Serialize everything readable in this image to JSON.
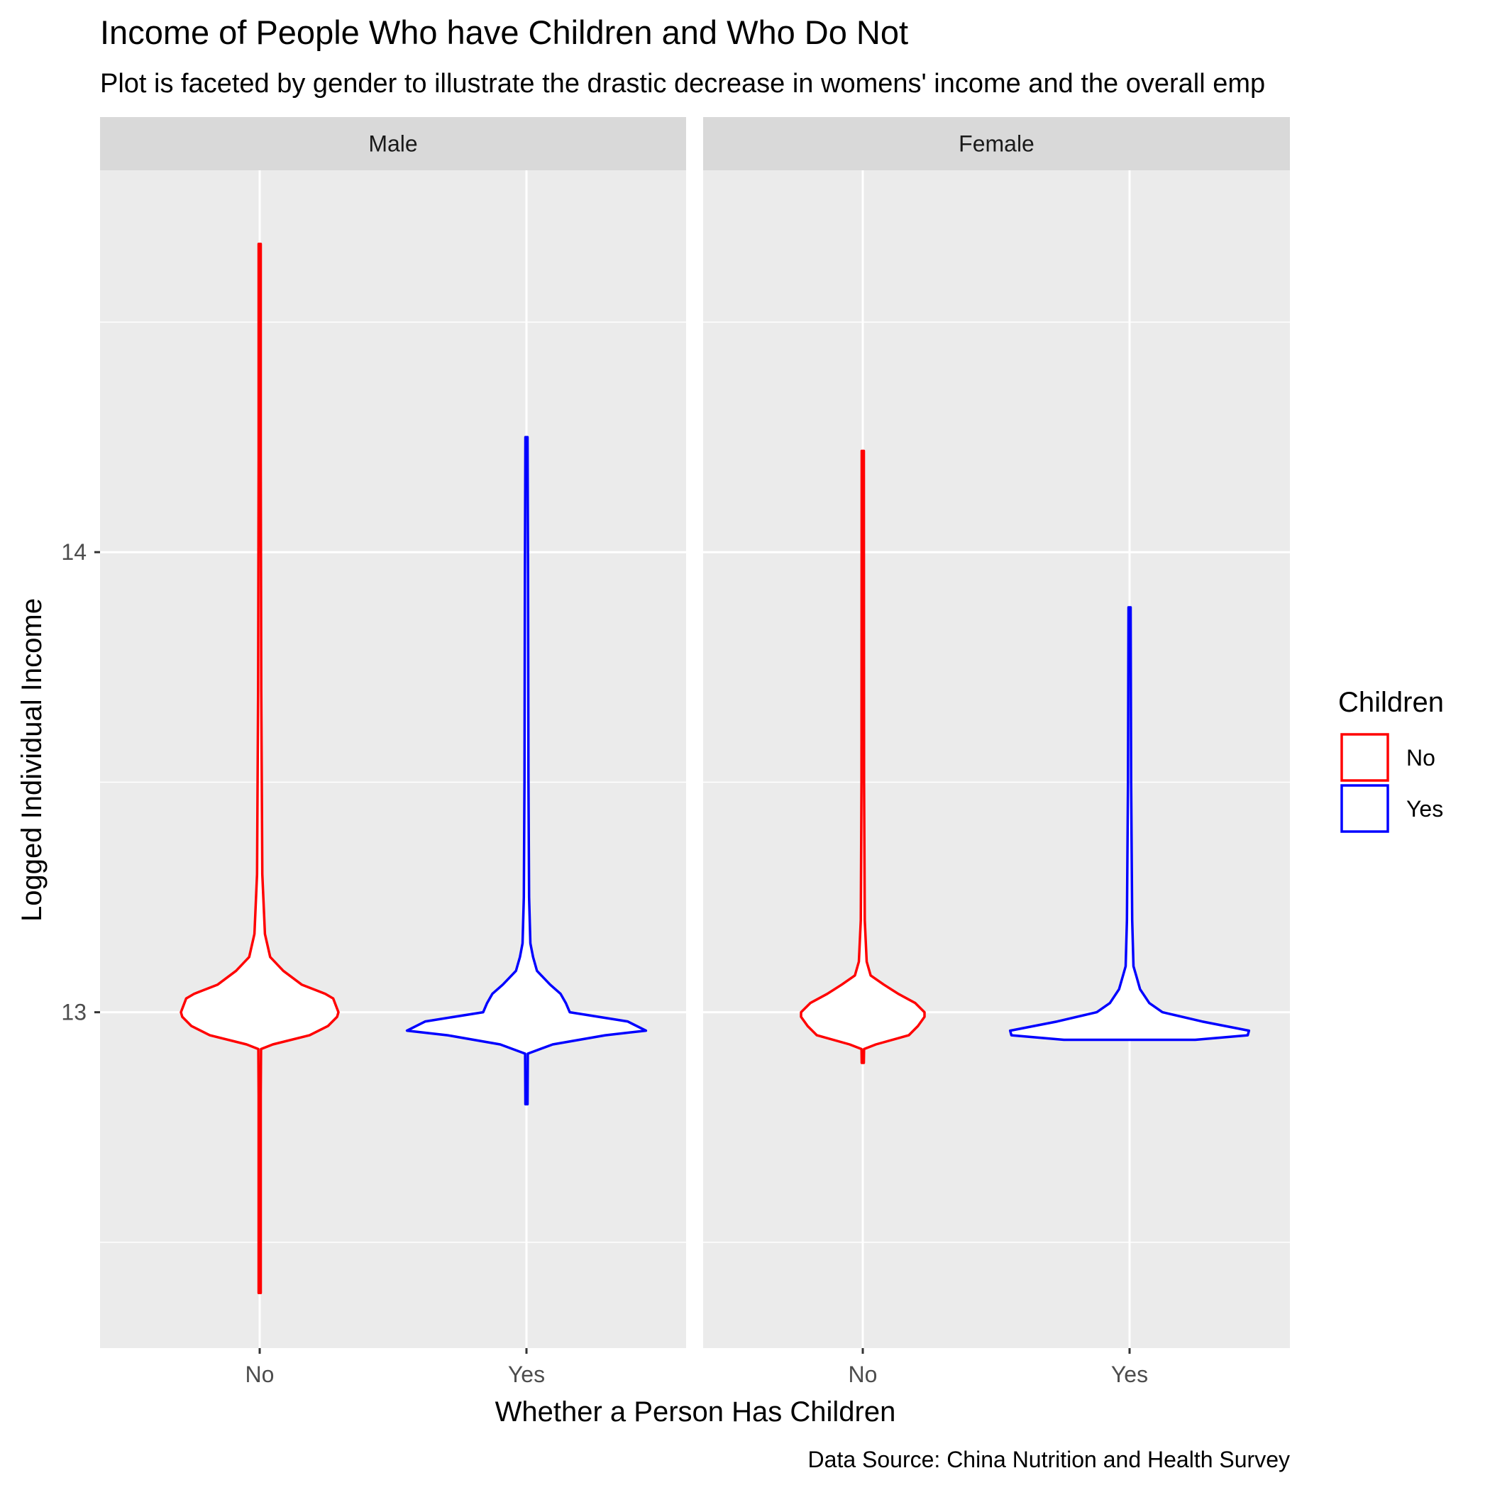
{
  "chart_data": {
    "type": "violin",
    "title": "Income of People Who have Children and Who Do Not",
    "subtitle": "Plot is faceted by gender to illustrate the drastic decrease in womens' income and the overall emp",
    "xlabel": "Whether a Person Has Children",
    "ylabel": "Logged Individual Income",
    "caption": "Data Source: China Nutrition and Health Survey",
    "categories": [
      "No",
      "Yes"
    ],
    "y_ticks": [
      13,
      14
    ],
    "y_tick_labels": [
      "13",
      "14"
    ],
    "ylim": [
      12.27,
      14.83
    ],
    "grid": true,
    "legend": {
      "title": "Children",
      "position": "right",
      "entries": [
        {
          "label": "No",
          "color": "#ff0000"
        },
        {
          "label": "Yes",
          "color": "#0000ff"
        }
      ]
    },
    "facets": [
      {
        "name": "Male",
        "series": [
          {
            "category": "No",
            "color": "#ff0000",
            "min": 12.39,
            "max": 14.67,
            "profile": [
              [
                12.39,
                0.008
              ],
              [
                12.6,
                0.008
              ],
              [
                12.82,
                0.008
              ],
              [
                12.92,
                0.01
              ],
              [
                12.93,
                0.1
              ],
              [
                12.95,
                0.38
              ],
              [
                12.97,
                0.52
              ],
              [
                12.99,
                0.59
              ],
              [
                13.0,
                0.6
              ],
              [
                13.03,
                0.56
              ],
              [
                13.04,
                0.5
              ],
              [
                13.06,
                0.32
              ],
              [
                13.09,
                0.18
              ],
              [
                13.12,
                0.08
              ],
              [
                13.17,
                0.04
              ],
              [
                13.3,
                0.02
              ],
              [
                13.7,
                0.012
              ],
              [
                14.2,
                0.008
              ],
              [
                14.67,
                0.008
              ]
            ]
          },
          {
            "category": "Yes",
            "color": "#0000ff",
            "min": 12.8,
            "max": 14.25,
            "profile": [
              [
                12.8,
                0.008
              ],
              [
                12.91,
                0.01
              ],
              [
                12.93,
                0.2
              ],
              [
                12.95,
                0.6
              ],
              [
                12.96,
                0.91
              ],
              [
                12.98,
                0.77
              ],
              [
                13.0,
                0.33
              ],
              [
                13.02,
                0.3
              ],
              [
                13.04,
                0.26
              ],
              [
                13.06,
                0.18
              ],
              [
                13.09,
                0.08
              ],
              [
                13.12,
                0.05
              ],
              [
                13.15,
                0.03
              ],
              [
                13.25,
                0.02
              ],
              [
                13.5,
                0.015
              ],
              [
                13.95,
                0.012
              ],
              [
                14.25,
                0.008
              ]
            ]
          }
        ]
      },
      {
        "name": "Female",
        "series": [
          {
            "category": "No",
            "color": "#ff0000",
            "min": 12.89,
            "max": 14.22,
            "profile": [
              [
                12.89,
                0.008
              ],
              [
                12.92,
                0.01
              ],
              [
                12.93,
                0.1
              ],
              [
                12.95,
                0.35
              ],
              [
                12.97,
                0.42
              ],
              [
                12.99,
                0.47
              ],
              [
                13.0,
                0.47
              ],
              [
                13.02,
                0.4
              ],
              [
                13.04,
                0.27
              ],
              [
                13.06,
                0.16
              ],
              [
                13.08,
                0.06
              ],
              [
                13.11,
                0.03
              ],
              [
                13.2,
                0.015
              ],
              [
                13.5,
                0.01
              ],
              [
                14.22,
                0.008
              ]
            ]
          },
          {
            "category": "Yes",
            "color": "#0000ff",
            "min": 12.94,
            "max": 13.88,
            "profile": [
              [
                12.94,
                0.5
              ],
              [
                12.95,
                0.9
              ],
              [
                12.96,
                0.91
              ],
              [
                12.98,
                0.55
              ],
              [
                13.0,
                0.25
              ],
              [
                13.02,
                0.15
              ],
              [
                13.05,
                0.08
              ],
              [
                13.08,
                0.05
              ],
              [
                13.1,
                0.03
              ],
              [
                13.2,
                0.02
              ],
              [
                13.5,
                0.012
              ],
              [
                13.88,
                0.008
              ]
            ]
          }
        ]
      }
    ]
  }
}
